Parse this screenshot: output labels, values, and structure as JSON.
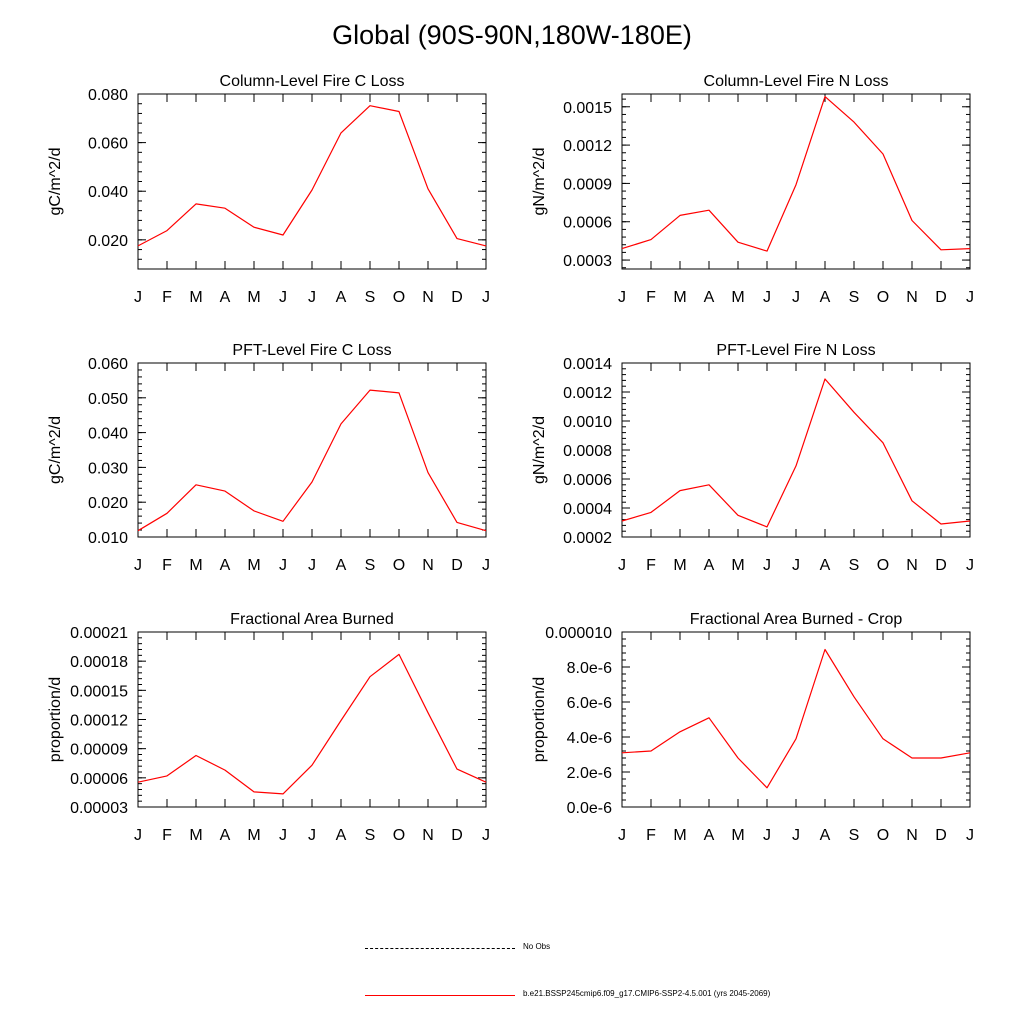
{
  "title": "Global (90S-90N,180W-180E)",
  "colors": {
    "series": "#ff0000",
    "axis": "#000000"
  },
  "chart_data": [
    {
      "type": "line",
      "title": "Column-Level Fire C Loss",
      "ylabel": "gC/m^2/d",
      "categories": [
        "J",
        "F",
        "M",
        "A",
        "M",
        "J",
        "J",
        "A",
        "S",
        "O",
        "N",
        "D",
        "J"
      ],
      "values": [
        0.0175,
        0.0238,
        0.0348,
        0.033,
        0.0252,
        0.022,
        0.0405,
        0.064,
        0.0752,
        0.0728,
        0.041,
        0.0205,
        0.0175
      ],
      "ylim": [
        0.008,
        0.08
      ],
      "yticks": [
        0.02,
        0.04,
        0.06,
        0.08
      ],
      "ytick_labels": [
        "0.020",
        "0.040",
        "0.060",
        "0.080"
      ],
      "yminor_step": 0.004
    },
    {
      "type": "line",
      "title": "Column-Level Fire N Loss",
      "ylabel": "gN/m^2/d",
      "categories": [
        "J",
        "F",
        "M",
        "A",
        "M",
        "J",
        "J",
        "A",
        "S",
        "O",
        "N",
        "D",
        "J"
      ],
      "values": [
        0.00039,
        0.00046,
        0.00065,
        0.00069,
        0.00044,
        0.00037,
        0.00089,
        0.00158,
        0.00138,
        0.00113,
        0.00061,
        0.00038,
        0.00039
      ],
      "ylim": [
        0.00023,
        0.0016
      ],
      "yticks": [
        0.0003,
        0.0006,
        0.0009,
        0.0012,
        0.0015
      ],
      "ytick_labels": [
        "0.0003",
        "0.0006",
        "0.0009",
        "0.0012",
        "0.0015"
      ],
      "yminor_step": 6e-05
    },
    {
      "type": "line",
      "title": "PFT-Level Fire C Loss",
      "ylabel": "gC/m^2/d",
      "categories": [
        "J",
        "F",
        "M",
        "A",
        "M",
        "J",
        "J",
        "A",
        "S",
        "O",
        "N",
        "D",
        "J"
      ],
      "values": [
        0.0118,
        0.0168,
        0.025,
        0.0232,
        0.0175,
        0.0145,
        0.0258,
        0.0425,
        0.0522,
        0.0514,
        0.0285,
        0.0142,
        0.0118
      ],
      "ylim": [
        0.01,
        0.06
      ],
      "yticks": [
        0.01,
        0.02,
        0.03,
        0.04,
        0.05,
        0.06
      ],
      "ytick_labels": [
        "0.010",
        "0.020",
        "0.030",
        "0.040",
        "0.050",
        "0.060"
      ],
      "yminor_step": 0.002
    },
    {
      "type": "line",
      "title": "PFT-Level Fire N Loss",
      "ylabel": "gN/m^2/d",
      "categories": [
        "J",
        "F",
        "M",
        "A",
        "M",
        "J",
        "J",
        "A",
        "S",
        "O",
        "N",
        "D",
        "J"
      ],
      "values": [
        0.00031,
        0.00037,
        0.00052,
        0.00056,
        0.00035,
        0.00027,
        0.00069,
        0.00129,
        0.00106,
        0.00085,
        0.00045,
        0.00029,
        0.00031
      ],
      "ylim": [
        0.0002,
        0.0014
      ],
      "yticks": [
        0.0002,
        0.0004,
        0.0006,
        0.0008,
        0.001,
        0.0012,
        0.0014
      ],
      "ytick_labels": [
        "0.0002",
        "0.0004",
        "0.0006",
        "0.0008",
        "0.0010",
        "0.0012",
        "0.0014"
      ],
      "yminor_step": 4e-05
    },
    {
      "type": "line",
      "title": "Fractional Area Burned",
      "ylabel": "proportion/d",
      "categories": [
        "J",
        "F",
        "M",
        "A",
        "M",
        "J",
        "J",
        "A",
        "S",
        "O",
        "N",
        "D",
        "J"
      ],
      "values": [
        5.55e-05,
        6.2e-05,
        8.3e-05,
        6.8e-05,
        4.55e-05,
        4.35e-05,
        7.3e-05,
        0.000119,
        0.000164,
        0.000187,
        0.000127,
        6.9e-05,
        5.55e-05
      ],
      "ylim": [
        3e-05,
        0.00021
      ],
      "yticks": [
        3e-05,
        6e-05,
        9e-05,
        0.00012,
        0.00015,
        0.00018,
        0.00021
      ],
      "ytick_labels": [
        "0.00003",
        "0.00006",
        "0.00009",
        "0.00012",
        "0.00015",
        "0.00018",
        "0.00021"
      ],
      "yminor_step": 6e-06
    },
    {
      "type": "line",
      "title": "Fractional Area Burned - Crop",
      "ylabel": "proportion/d",
      "categories": [
        "J",
        "F",
        "M",
        "A",
        "M",
        "J",
        "J",
        "A",
        "S",
        "O",
        "N",
        "D",
        "J"
      ],
      "values": [
        3.1e-06,
        3.2e-06,
        4.3e-06,
        5.1e-06,
        2.8e-06,
        1.1e-06,
        3.9e-06,
        9e-06,
        6.3e-06,
        3.9e-06,
        2.8e-06,
        2.8e-06,
        3.1e-06
      ],
      "ylim": [
        0.0,
        1e-05
      ],
      "yticks": [
        0.0,
        2e-06,
        4e-06,
        6e-06,
        8e-06,
        1e-05
      ],
      "ytick_labels": [
        "0.0e-6",
        "2.0e-6",
        "4.0e-6",
        "6.0e-6",
        "8.0e-6",
        "0.000010"
      ],
      "yminor_step": 4e-07
    }
  ],
  "legend": [
    {
      "label": "No Obs",
      "style": "dashed"
    },
    {
      "label": "b.e21.BSSP245cmip6.f09_g17.CMIP6-SSP2-4.5.001 (yrs 2045-2069)",
      "style": "solid"
    }
  ]
}
